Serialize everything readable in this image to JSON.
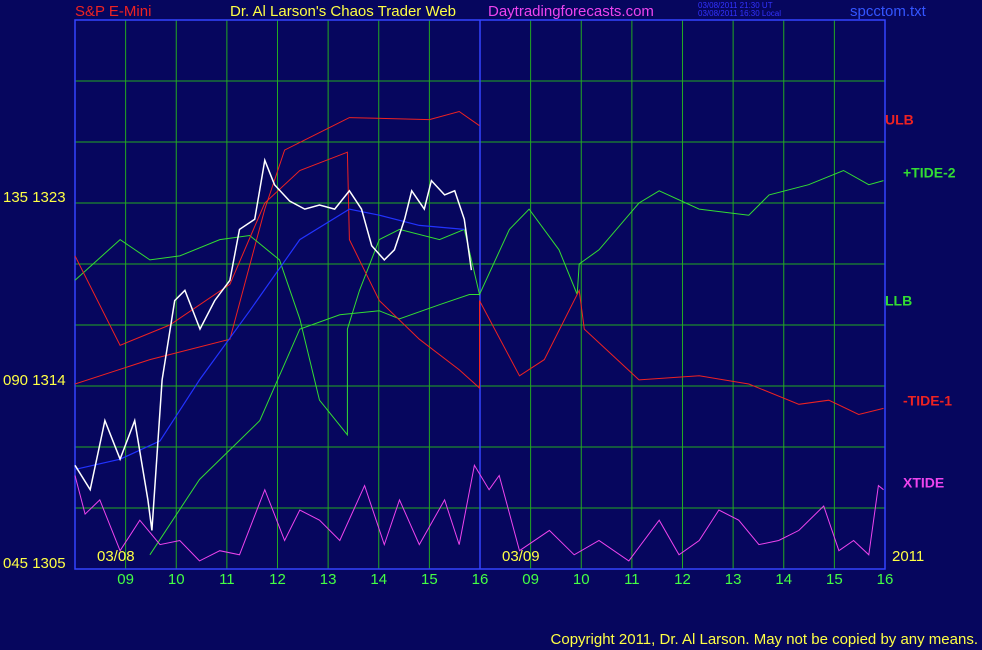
{
  "chart_data": {
    "type": "line",
    "instrument": "S&P E-Mini",
    "title": "Dr. Al Larson's Chaos Trader Web",
    "site": "Daytradingforecasts.com",
    "timestamp_ut": "03/08/2011 21:30 UT",
    "timestamp_local": "03/08/2011 16:30 Local",
    "file": "spcctom.txt",
    "copyright": "Copyright 2011, Dr. Al Larson. May not be copied by any means.",
    "date_labels": [
      "03/08",
      "03/09",
      "2011"
    ],
    "xlim": [
      8,
      24
    ],
    "xticks": [
      {
        "value": 9,
        "label": "09"
      },
      10,
      11,
      12,
      13,
      14,
      15,
      16,
      {
        "value": 17,
        "label": "09"
      },
      {
        "value": 18,
        "label": "10"
      },
      {
        "value": 19,
        "label": "11"
      },
      {
        "value": 20,
        "label": "12"
      },
      {
        "value": 21,
        "label": "13"
      },
      {
        "value": 22,
        "label": "14"
      },
      {
        "value": 23,
        "label": "15"
      },
      {
        "value": 24,
        "label": "16"
      }
    ],
    "day_divider": 16,
    "ylim": [
      1305,
      1332
    ],
    "yticks": [
      {
        "value": 1305,
        "label": "045 1305"
      },
      {
        "value": 1314,
        "label": "090 1314"
      },
      {
        "value": 1323,
        "label": "135 1323"
      }
    ],
    "ygrid": [
      1305,
      1308,
      1311,
      1314,
      1317,
      1320,
      1323,
      1326,
      1329,
      1332
    ],
    "grid": true,
    "grid_color": "#22aa22",
    "price_line": {
      "color": "#ffffff",
      "x": [
        8.0,
        8.3,
        8.59,
        8.89,
        9.18,
        9.44,
        9.52,
        9.72,
        9.97,
        10.17,
        10.47,
        10.76,
        11.06,
        11.25,
        11.55,
        11.75,
        11.94,
        12.24,
        12.54,
        12.83,
        13.13,
        13.42,
        13.66,
        13.86,
        14.11,
        14.31,
        14.51,
        14.65,
        14.9,
        15.04,
        15.3,
        15.5,
        15.69,
        15.83
      ],
      "values": [
        1310.1,
        1308.9,
        1312.3,
        1310.4,
        1312.3,
        1308.4,
        1306.9,
        1314.3,
        1318.2,
        1318.7,
        1316.8,
        1318.2,
        1319.2,
        1321.7,
        1322.2,
        1325.1,
        1323.9,
        1323.1,
        1322.7,
        1322.9,
        1322.7,
        1323.6,
        1322.7,
        1320.9,
        1320.2,
        1320.7,
        1322.2,
        1323.6,
        1322.7,
        1324.1,
        1323.4,
        1323.6,
        1322.2,
        1319.7
      ]
    },
    "average_line": {
      "color": "#2233ff",
      "x": [
        8.0,
        8.89,
        9.68,
        10.46,
        11.45,
        12.44,
        13.42,
        14.01,
        14.8,
        15.69
      ],
      "values": [
        1309.9,
        1310.4,
        1311.3,
        1314.3,
        1317.7,
        1321.2,
        1322.7,
        1322.4,
        1321.9,
        1321.7
      ]
    },
    "series": [
      {
        "name": "ULB",
        "color": "#ee2222",
        "x": [
          8.0,
          9.48,
          11.06,
          11.75,
          12.14,
          13.42,
          15.0,
          15.59,
          15.99
        ],
        "values": [
          1314.1,
          1315.3,
          1316.3,
          1322.7,
          1325.6,
          1327.2,
          1327.1,
          1327.5,
          1326.8
        ]
      },
      {
        "name": "+TIDE-2",
        "color": "#33dd33",
        "x": [
          8.0,
          8.89,
          9.48,
          10.07,
          10.86,
          11.45,
          12.04,
          12.44,
          12.83,
          13.38,
          13.38,
          13.62,
          14.01,
          14.41,
          15.2,
          15.69,
          15.99,
          16.58,
          16.97,
          17.56,
          17.92,
          17.96,
          18.35,
          19.14,
          19.54,
          20.33,
          21.31,
          21.71,
          22.49,
          23.18,
          23.68,
          23.97
        ],
        "values": [
          1319.2,
          1321.2,
          1320.2,
          1320.4,
          1321.2,
          1321.4,
          1320.2,
          1317.3,
          1313.3,
          1311.6,
          1316.8,
          1318.7,
          1321.2,
          1321.7,
          1321.2,
          1321.7,
          1318.5,
          1321.7,
          1322.7,
          1320.7,
          1318.5,
          1320.0,
          1320.7,
          1323.0,
          1323.6,
          1322.7,
          1322.4,
          1323.4,
          1323.9,
          1324.6,
          1323.9,
          1324.1
        ]
      },
      {
        "name": "LLB",
        "color": "#33dd33",
        "x": [
          9.48,
          10.46,
          11.65,
          12.44,
          13.23,
          14.01,
          14.41,
          15.2,
          15.79,
          15.99
        ],
        "values": [
          1305.7,
          1309.4,
          1312.3,
          1316.8,
          1317.5,
          1317.7,
          1317.3,
          1318.0,
          1318.5,
          1318.5
        ]
      },
      {
        "name": "-TIDE-1",
        "color": "#ee2222",
        "x": [
          8.0,
          8.89,
          9.87,
          11.06,
          11.75,
          12.44,
          13.38,
          13.42,
          14.01,
          14.8,
          15.59,
          15.99,
          15.99,
          16.78,
          17.27,
          17.96,
          18.06,
          19.14,
          20.33,
          21.31,
          22.3,
          22.89,
          23.48,
          23.97
        ],
        "values": [
          1320.4,
          1316.0,
          1317.0,
          1319.0,
          1323.0,
          1324.6,
          1325.5,
          1321.2,
          1318.2,
          1316.3,
          1314.8,
          1313.9,
          1318.2,
          1314.5,
          1315.3,
          1318.7,
          1316.8,
          1314.3,
          1314.5,
          1314.1,
          1313.1,
          1313.3,
          1312.6,
          1312.9
        ]
      },
      {
        "name": "XTIDE",
        "color": "#ee44ee",
        "x": [
          8.0,
          8.2,
          8.49,
          8.89,
          9.28,
          9.68,
          10.07,
          10.46,
          10.86,
          11.25,
          11.75,
          12.14,
          12.44,
          12.83,
          13.23,
          13.72,
          14.11,
          14.41,
          14.8,
          15.3,
          15.59,
          15.89,
          16.18,
          16.38,
          16.78,
          17.37,
          17.86,
          18.35,
          18.94,
          19.54,
          19.93,
          20.33,
          20.72,
          21.11,
          21.51,
          21.9,
          22.3,
          22.79,
          23.09,
          23.38,
          23.68,
          23.87,
          23.97
        ],
        "values": [
          1309.6,
          1307.7,
          1308.4,
          1305.9,
          1307.4,
          1306.2,
          1306.4,
          1305.4,
          1305.9,
          1305.7,
          1308.9,
          1306.4,
          1307.9,
          1307.4,
          1306.4,
          1309.1,
          1306.2,
          1308.4,
          1306.2,
          1308.4,
          1306.2,
          1310.1,
          1308.9,
          1309.6,
          1305.9,
          1306.9,
          1305.7,
          1306.4,
          1305.4,
          1307.4,
          1305.7,
          1306.4,
          1307.9,
          1307.4,
          1306.2,
          1306.4,
          1306.9,
          1308.1,
          1305.9,
          1306.4,
          1305.7,
          1309.1,
          1308.9
        ]
      }
    ]
  }
}
